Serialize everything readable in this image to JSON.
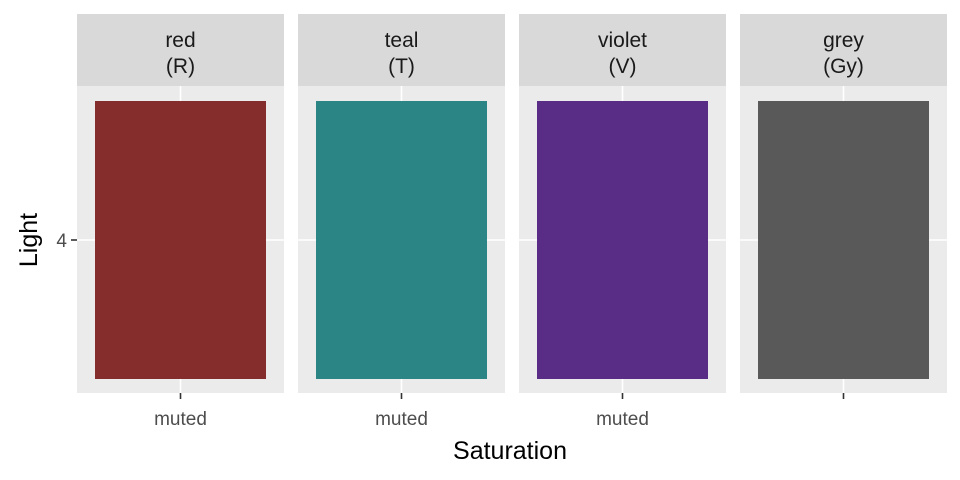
{
  "chart_data": {
    "type": "tile",
    "xlabel": "Saturation",
    "ylabel": "Light",
    "y_ticks": [
      "4"
    ],
    "facets": [
      {
        "strip_line1": "red",
        "strip_line2": "(R)",
        "x_tick": "muted",
        "y": "4",
        "fill": "#852D2C"
      },
      {
        "strip_line1": "teal",
        "strip_line2": "(T)",
        "x_tick": "muted",
        "y": "4",
        "fill": "#2B8584"
      },
      {
        "strip_line1": "violet",
        "strip_line2": "(V)",
        "x_tick": "muted",
        "y": "4",
        "fill": "#592D85"
      },
      {
        "strip_line1": "grey",
        "strip_line2": "(Gy)",
        "x_tick": "",
        "y": "4",
        "fill": "#595959"
      }
    ],
    "grid": true,
    "panel_background": "#EBEBEB",
    "strip_background": "#D9D9D9",
    "gridline_color": "#FFFFFF"
  }
}
